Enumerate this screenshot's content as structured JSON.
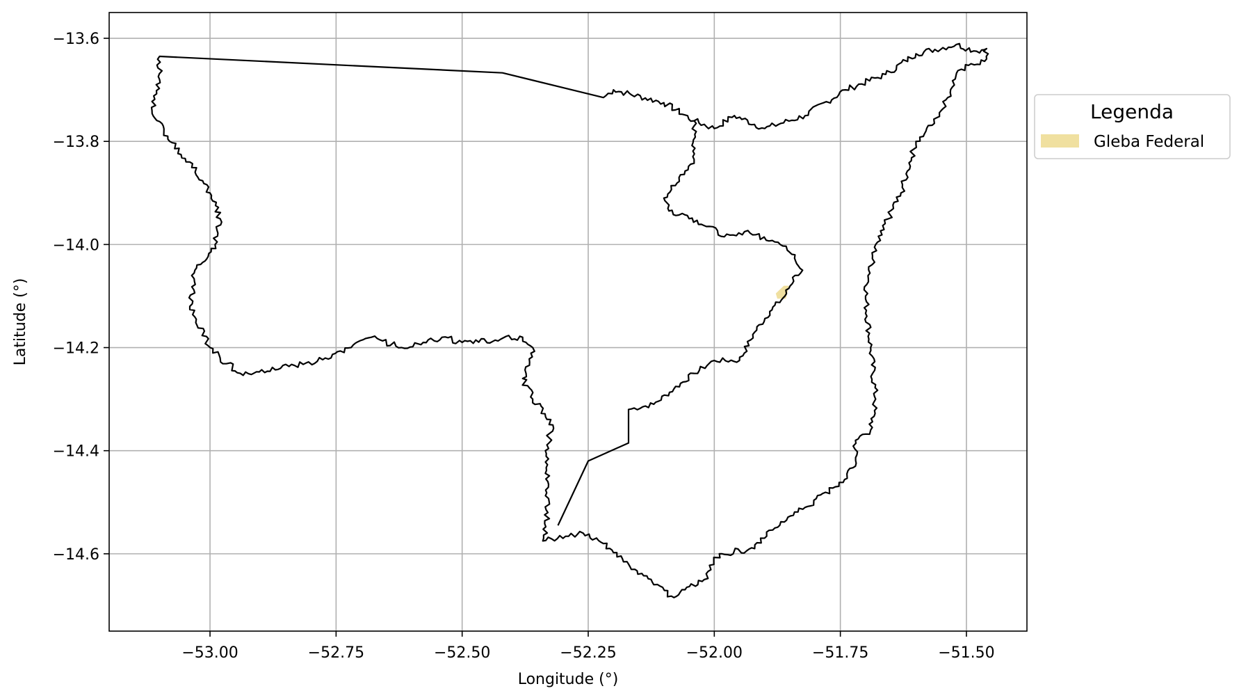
{
  "chart_data": {
    "type": "map",
    "xlabel": "Longitude (°)",
    "ylabel": "Latitude (°)",
    "xlim": [
      -53.2,
      -51.38
    ],
    "ylim": [
      -14.75,
      -13.55
    ],
    "x_ticks": [
      -53.0,
      -52.75,
      -52.5,
      -52.25,
      -52.0,
      -51.75,
      -51.5
    ],
    "x_tick_labels": [
      "−53.00",
      "−52.75",
      "−52.50",
      "−52.25",
      "−52.00",
      "−51.75",
      "−51.50"
    ],
    "y_ticks": [
      -13.6,
      -13.8,
      -14.0,
      -14.2,
      -14.4,
      -14.6
    ],
    "y_tick_labels": [
      "−13.6",
      "−13.8",
      "−14.0",
      "−14.2",
      "−14.4",
      "−14.6"
    ],
    "grid": true,
    "legend": {
      "title": "Legenda",
      "placement": "outside-right-top",
      "entries": [
        {
          "label": "Gleba Federal",
          "color": "#f0e0a0"
        }
      ]
    },
    "boundary_color": "#000000",
    "outline_west": [
      [
        -53.1,
        -13.635
      ],
      [
        -52.42,
        -13.667
      ],
      [
        -52.22,
        -13.715
      ],
      [
        -52.2,
        -13.7
      ],
      [
        -52.1,
        -13.725
      ],
      [
        -52.04,
        -13.76
      ],
      [
        -52.0,
        -13.775
      ],
      [
        -51.96,
        -13.75
      ],
      [
        -51.9,
        -13.775
      ],
      [
        -51.82,
        -13.75
      ],
      [
        -51.74,
        -13.7
      ],
      [
        -51.66,
        -13.67
      ],
      [
        -51.6,
        -13.63
      ],
      [
        -51.52,
        -13.612
      ],
      [
        -51.48,
        -13.625
      ],
      [
        -51.46,
        -13.62
      ],
      [
        -51.46,
        -13.64
      ],
      [
        -51.51,
        -13.66
      ],
      [
        -51.55,
        -13.74
      ],
      [
        -51.6,
        -13.8
      ],
      [
        -51.63,
        -13.9
      ],
      [
        -51.68,
        -14.0
      ],
      [
        -51.7,
        -14.1
      ],
      [
        -51.69,
        -14.2
      ],
      [
        -51.68,
        -14.3
      ],
      [
        -51.69,
        -14.36
      ],
      [
        -51.72,
        -14.38
      ],
      [
        -51.72,
        -14.43
      ],
      [
        -51.76,
        -14.47
      ],
      [
        -51.82,
        -14.51
      ],
      [
        -51.88,
        -14.55
      ],
      [
        -51.92,
        -14.59
      ],
      [
        -51.99,
        -14.6
      ],
      [
        -52.02,
        -14.65
      ],
      [
        -52.08,
        -14.685
      ],
      [
        -52.12,
        -14.66
      ],
      [
        -52.17,
        -14.62
      ],
      [
        -52.22,
        -14.58
      ],
      [
        -52.26,
        -14.56
      ],
      [
        -52.3,
        -14.57
      ],
      [
        -52.34,
        -14.575
      ],
      [
        -52.33,
        -14.52
      ],
      [
        -52.33,
        -14.46
      ],
      [
        -52.335,
        -14.4
      ],
      [
        -52.32,
        -14.35
      ],
      [
        -52.36,
        -14.3
      ],
      [
        -52.38,
        -14.26
      ],
      [
        -52.36,
        -14.2
      ],
      [
        -52.38,
        -14.18
      ],
      [
        -52.5,
        -14.19
      ],
      [
        -52.54,
        -14.18
      ],
      [
        -52.62,
        -14.2
      ],
      [
        -52.68,
        -14.18
      ],
      [
        -52.76,
        -14.22
      ],
      [
        -52.86,
        -14.24
      ],
      [
        -52.94,
        -14.25
      ],
      [
        -52.98,
        -14.22
      ],
      [
        -53.0,
        -14.2
      ],
      [
        -53.04,
        -14.12
      ],
      [
        -53.03,
        -14.05
      ],
      [
        -52.99,
        -14.0
      ],
      [
        -52.98,
        -13.95
      ],
      [
        -53.0,
        -13.9
      ],
      [
        -53.04,
        -13.84
      ],
      [
        -53.08,
        -13.8
      ],
      [
        -53.115,
        -13.74
      ],
      [
        -53.1,
        -13.68
      ],
      [
        -53.1,
        -13.635
      ]
    ],
    "inner_boundary": [
      [
        -52.31,
        -14.545
      ],
      [
        -52.25,
        -14.42
      ],
      [
        -52.17,
        -14.385
      ],
      [
        -52.17,
        -14.32
      ],
      [
        -52.12,
        -14.31
      ],
      [
        -52.08,
        -14.28
      ],
      [
        -52.04,
        -14.25
      ],
      [
        -52.0,
        -14.225
      ],
      [
        -51.95,
        -14.225
      ],
      [
        -51.92,
        -14.17
      ],
      [
        -51.89,
        -14.13
      ],
      [
        -51.86,
        -14.1
      ],
      [
        -51.84,
        -14.06
      ],
      [
        -51.825,
        -14.05
      ],
      [
        -51.84,
        -14.02
      ],
      [
        -51.88,
        -13.995
      ],
      [
        -51.94,
        -13.975
      ],
      [
        -51.98,
        -13.985
      ],
      [
        -52.01,
        -13.965
      ],
      [
        -52.05,
        -13.95
      ],
      [
        -52.09,
        -13.935
      ],
      [
        -52.1,
        -13.91
      ],
      [
        -52.07,
        -13.87
      ],
      [
        -52.04,
        -13.835
      ],
      [
        -52.04,
        -13.77
      ],
      [
        -52.04,
        -13.76
      ]
    ],
    "gleba_polygon": [
      [
        -51.875,
        -14.105
      ],
      [
        -51.858,
        -14.105
      ],
      [
        -51.852,
        -14.08
      ],
      [
        -51.862,
        -14.08
      ],
      [
        -51.878,
        -14.095
      ]
    ]
  }
}
